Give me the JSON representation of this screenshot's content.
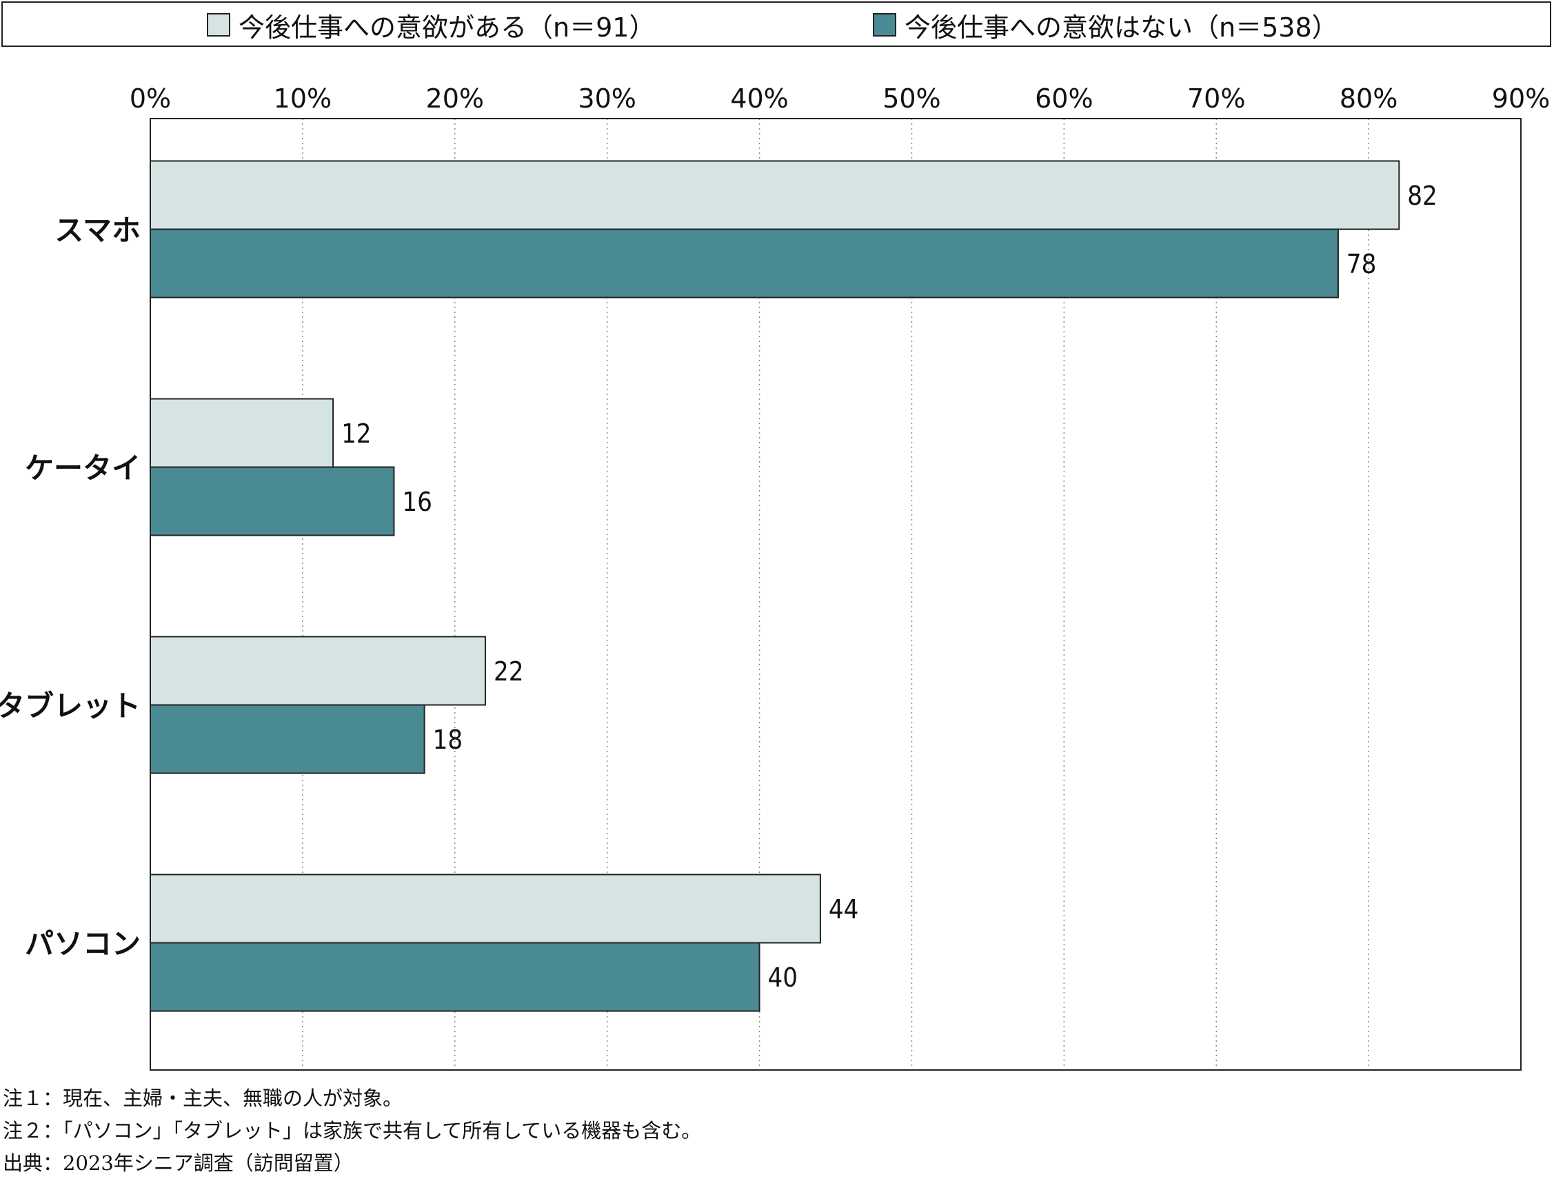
{
  "legend": {
    "items": [
      {
        "label": "今後仕事への意欲がある（n＝91）",
        "color": "#d6e3e3"
      },
      {
        "label": "今後仕事への意欲はない（n＝538）",
        "color": "#4a8a93"
      }
    ]
  },
  "notes": [
    "注１：現在、主婦・主夫、無職の人が対象。",
    "注２：「パソコン」「タブレット」は家族で共有して所有している機器も含む。",
    "出典：2023年シニア調査（訪問留置）"
  ],
  "chart_data": {
    "type": "bar",
    "orientation": "horizontal",
    "categories": [
      "スマホ",
      "ケータイ",
      "タブレット",
      "パソコン"
    ],
    "series": [
      {
        "name": "今後仕事への意欲がある（n＝91）",
        "values": [
          82,
          12,
          22,
          44
        ],
        "color": "#d6e3e3"
      },
      {
        "name": "今後仕事への意欲はない（n＝538）",
        "values": [
          78,
          16,
          18,
          40
        ],
        "color": "#4a8a93"
      }
    ],
    "xlim": [
      0,
      90
    ],
    "xticks": [
      0,
      10,
      20,
      30,
      40,
      50,
      60,
      70,
      80,
      90
    ],
    "xtick_labels": [
      "0%",
      "10%",
      "20%",
      "30%",
      "40%",
      "50%",
      "60%",
      "70%",
      "80%",
      "90%"
    ],
    "grid": "vertical dotted",
    "legend_position": "top"
  }
}
